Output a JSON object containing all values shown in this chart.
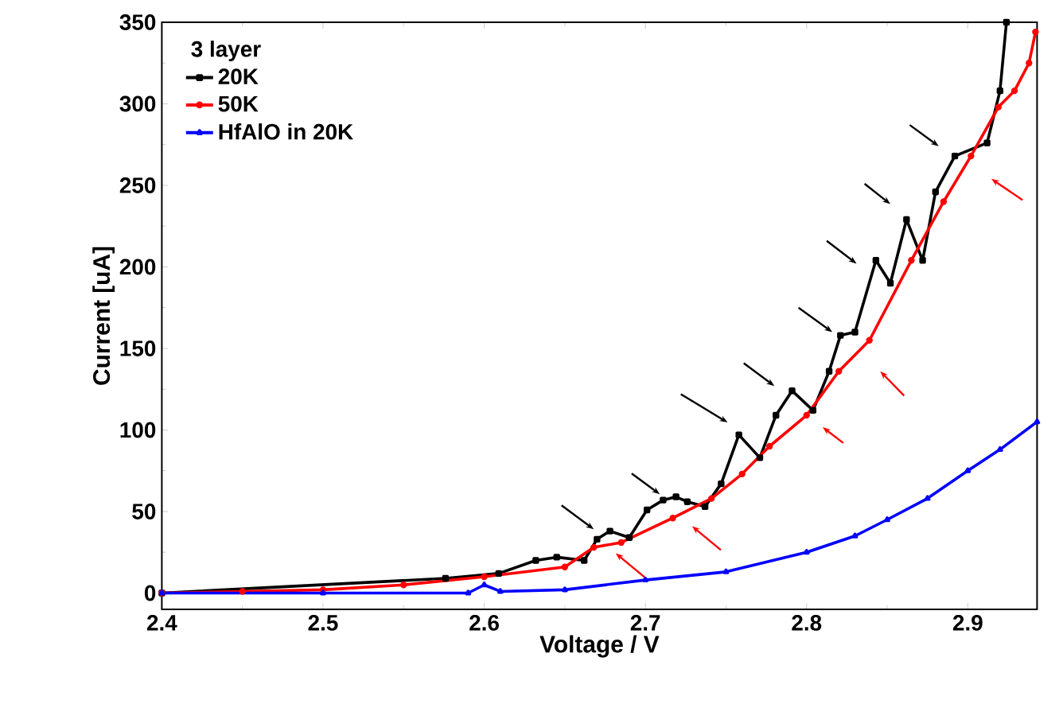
{
  "chart_data": {
    "type": "line",
    "xlabel": "Voltage / V",
    "ylabel": "Current [uA]",
    "legend_title": "3 layer",
    "legend": "top left",
    "line_style": "solid",
    "xlim": [
      2.4,
      2.943
    ],
    "ylim": [
      -10,
      350
    ],
    "xticks": [
      2.4,
      2.5,
      2.6,
      2.7,
      2.8,
      2.9
    ],
    "yticks": [
      0,
      50,
      100,
      150,
      200,
      250,
      300,
      350
    ],
    "series": [
      {
        "name": "20K",
        "color": "#000000",
        "marker": "square",
        "x": [
          2.4,
          2.576,
          2.609,
          2.632,
          2.645,
          2.662,
          2.67,
          2.678,
          2.69,
          2.701,
          2.711,
          2.719,
          2.726,
          2.737,
          2.747,
          2.758,
          2.771,
          2.781,
          2.791,
          2.804,
          2.814,
          2.821,
          2.83,
          2.843,
          2.852,
          2.862,
          2.872,
          2.88,
          2.892,
          2.912,
          2.92,
          2.924
        ],
        "values": [
          0,
          9,
          12,
          20,
          22,
          20,
          33,
          38,
          34,
          51,
          57,
          59,
          56,
          53,
          67,
          97,
          83,
          109,
          124,
          112,
          136,
          158,
          160,
          204,
          190,
          229,
          204,
          246,
          268,
          276,
          308,
          350
        ]
      },
      {
        "name": "50K",
        "color": "#ff0000",
        "marker": "circle",
        "x": [
          2.4,
          2.45,
          2.5,
          2.55,
          2.6,
          2.65,
          2.668,
          2.685,
          2.717,
          2.741,
          2.76,
          2.777,
          2.8,
          2.82,
          2.839,
          2.865,
          2.885,
          2.902,
          2.919,
          2.929,
          2.938,
          2.942
        ],
        "values": [
          0,
          1,
          2,
          5,
          10,
          16,
          28,
          31,
          46,
          58,
          73,
          90,
          109,
          136,
          155,
          204,
          240,
          268,
          298,
          308,
          325,
          344
        ]
      },
      {
        "name": "HfAlO in 20K",
        "color": "#0000ff",
        "marker": "triangle",
        "x": [
          2.4,
          2.5,
          2.59,
          2.6,
          2.61,
          2.65,
          2.7,
          2.75,
          2.8,
          2.83,
          2.85,
          2.875,
          2.9,
          2.92,
          2.943
        ],
        "values": [
          0,
          0,
          0,
          5,
          1,
          2,
          8,
          13,
          25,
          35,
          45,
          58,
          75,
          88,
          105
        ]
      }
    ]
  }
}
